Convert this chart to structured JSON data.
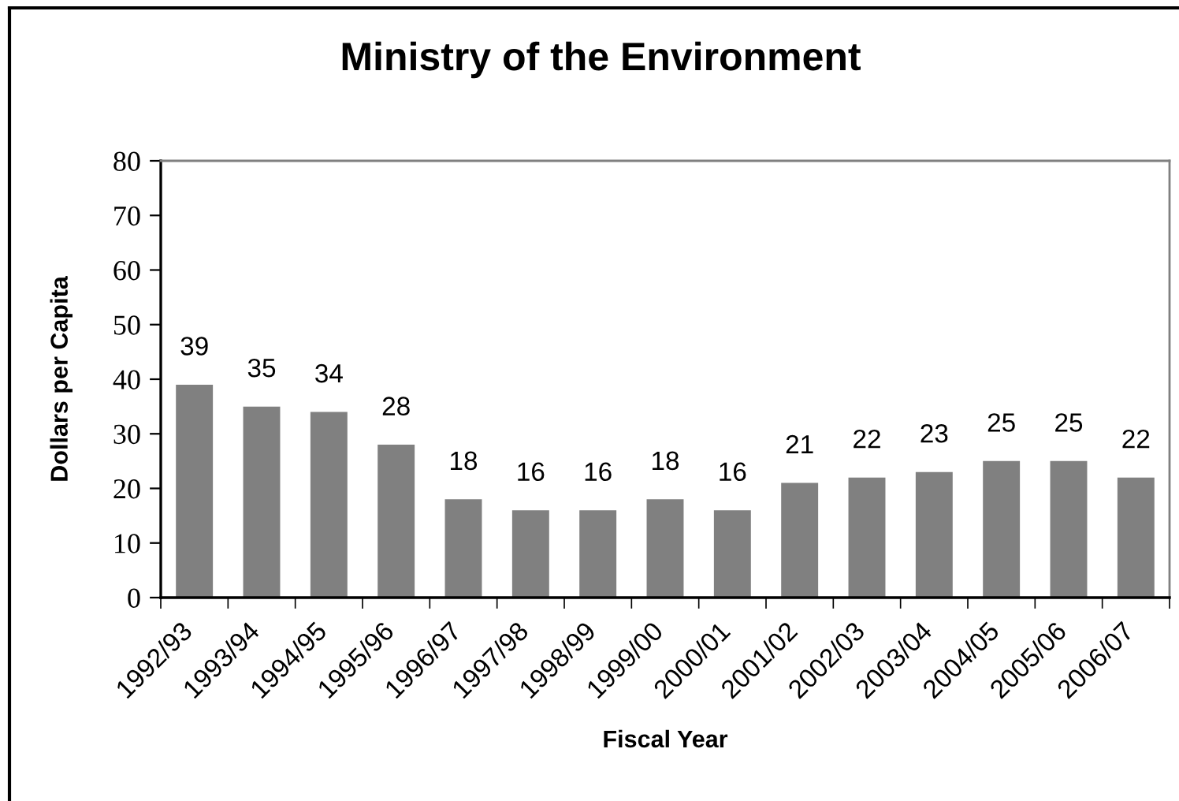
{
  "chart_data": {
    "type": "bar",
    "title": "Ministry of the Environment",
    "xlabel": "Fiscal Year",
    "ylabel": "Dollars per Capita",
    "categories": [
      "1992/93",
      "1993/94",
      "1994/95",
      "1995/96",
      "1996/97",
      "1997/98",
      "1998/99",
      "1999/00",
      "2000/01",
      "2001/02",
      "2002/03",
      "2003/04",
      "2004/05",
      "2005/06",
      "2006/07"
    ],
    "values": [
      39,
      35,
      34,
      28,
      18,
      16,
      16,
      18,
      16,
      21,
      22,
      23,
      25,
      25,
      22
    ],
    "color": "#808080",
    "ylim": [
      0,
      80
    ],
    "yticks": [
      0,
      10,
      20,
      30,
      40,
      50,
      60,
      70,
      80
    ],
    "data_labels": true
  }
}
